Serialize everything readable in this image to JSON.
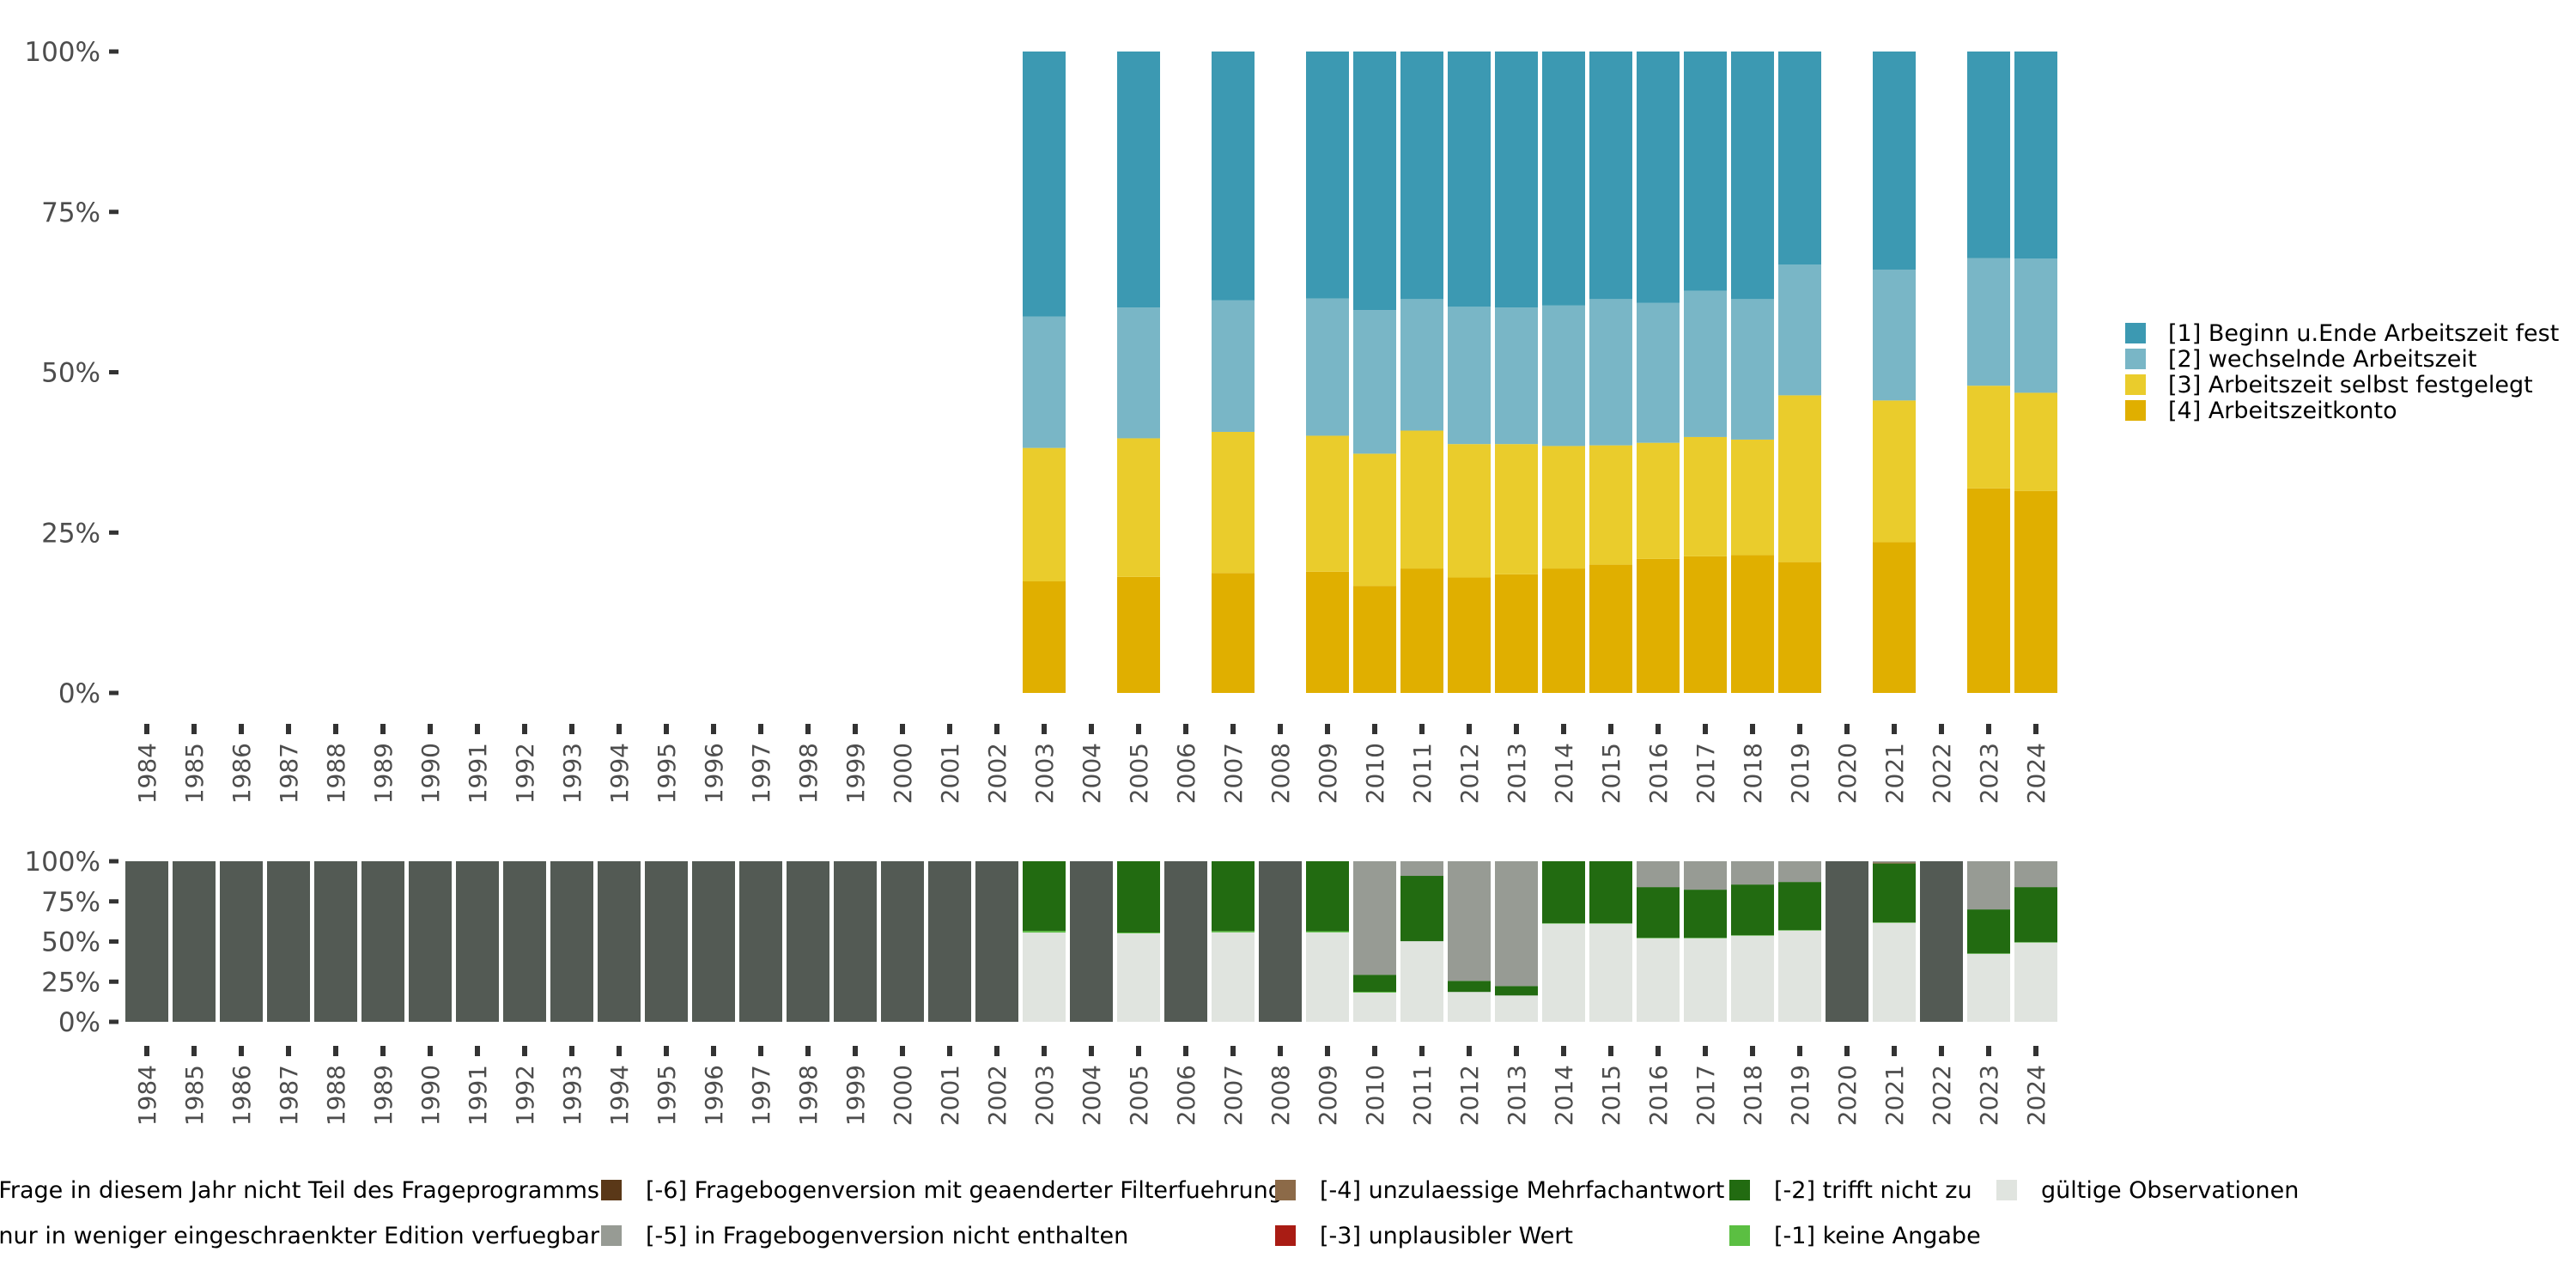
{
  "chart_data": [
    {
      "type": "bar",
      "stacked": true,
      "title": "",
      "xlabel": "",
      "ylabel": "",
      "ylim": [
        0,
        1
      ],
      "y_ticks": [
        "0%",
        "25%",
        "50%",
        "75%",
        "100%"
      ],
      "categories": [
        "1984",
        "1985",
        "1986",
        "1987",
        "1988",
        "1989",
        "1990",
        "1991",
        "1992",
        "1993",
        "1994",
        "1995",
        "1996",
        "1997",
        "1998",
        "1999",
        "2000",
        "2001",
        "2002",
        "2003",
        "2004",
        "2005",
        "2006",
        "2007",
        "2008",
        "2009",
        "2010",
        "2011",
        "2012",
        "2013",
        "2014",
        "2015",
        "2016",
        "2017",
        "2018",
        "2019",
        "2020",
        "2021",
        "2022",
        "2023",
        "2024"
      ],
      "legend_position": "right",
      "series": [
        {
          "name": "[4] Arbeitszeitkonto",
          "color": "#E0AF00",
          "values": {
            "2003": 0.174,
            "2005": 0.181,
            "2007": 0.187,
            "2009": 0.189,
            "2010": 0.167,
            "2011": 0.194,
            "2012": 0.18,
            "2013": 0.185,
            "2014": 0.194,
            "2015": 0.2,
            "2016": 0.209,
            "2017": 0.213,
            "2018": 0.215,
            "2019": 0.204,
            "2021": 0.235,
            "2023": 0.319,
            "2024": 0.315
          }
        },
        {
          "name": "[3] Arbeitszeit selbst festgelegt",
          "color": "#EACC2C",
          "values": {
            "2003": 0.208,
            "2005": 0.216,
            "2007": 0.22,
            "2009": 0.212,
            "2010": 0.206,
            "2011": 0.215,
            "2012": 0.208,
            "2013": 0.203,
            "2014": 0.191,
            "2015": 0.186,
            "2016": 0.181,
            "2017": 0.186,
            "2018": 0.18,
            "2019": 0.26,
            "2021": 0.221,
            "2023": 0.16,
            "2024": 0.153
          }
        },
        {
          "name": "[2] wechselnde Arbeitszeit",
          "color": "#79B6C6",
          "values": {
            "2003": 0.205,
            "2005": 0.204,
            "2007": 0.205,
            "2009": 0.214,
            "2010": 0.224,
            "2011": 0.205,
            "2012": 0.214,
            "2013": 0.213,
            "2014": 0.219,
            "2015": 0.228,
            "2016": 0.218,
            "2017": 0.228,
            "2018": 0.219,
            "2019": 0.204,
            "2021": 0.204,
            "2023": 0.199,
            "2024": 0.209
          }
        },
        {
          "name": "[1] Beginn u.Ende Arbeitszeit fest",
          "color": "#3C99B2",
          "values": {
            "2003": 0.413,
            "2005": 0.399,
            "2007": 0.388,
            "2009": 0.385,
            "2010": 0.403,
            "2011": 0.386,
            "2012": 0.398,
            "2013": 0.399,
            "2014": 0.396,
            "2015": 0.386,
            "2016": 0.392,
            "2017": 0.373,
            "2018": 0.386,
            "2019": 0.332,
            "2021": 0.34,
            "2023": 0.322,
            "2024": 0.323
          }
        }
      ]
    },
    {
      "type": "bar",
      "stacked": true,
      "title": "",
      "xlabel": "",
      "ylabel": "",
      "ylim": [
        0,
        1
      ],
      "y_ticks": [
        "0%",
        "25%",
        "50%",
        "75%",
        "100%"
      ],
      "categories": [
        "1984",
        "1985",
        "1986",
        "1987",
        "1988",
        "1989",
        "1990",
        "1991",
        "1992",
        "1993",
        "1994",
        "1995",
        "1996",
        "1997",
        "1998",
        "1999",
        "2000",
        "2001",
        "2002",
        "2003",
        "2004",
        "2005",
        "2006",
        "2007",
        "2008",
        "2009",
        "2010",
        "2011",
        "2012",
        "2013",
        "2014",
        "2015",
        "2016",
        "2017",
        "2018",
        "2019",
        "2020",
        "2021",
        "2022",
        "2023",
        "2024"
      ],
      "legend_position": "bottom",
      "series": [
        {
          "name": "gültige Observationen",
          "color": "#E0E4DF",
          "values": {
            "2003": 0.556,
            "2005": 0.551,
            "2007": 0.557,
            "2009": 0.557,
            "2010": 0.182,
            "2011": 0.502,
            "2012": 0.186,
            "2013": 0.164,
            "2014": 0.611,
            "2015": 0.611,
            "2016": 0.52,
            "2017": 0.52,
            "2018": 0.536,
            "2019": 0.568,
            "2021": 0.616,
            "2023": 0.423,
            "2024": 0.493
          }
        },
        {
          "name": "[-1] keine Angabe",
          "color": "#5BBF42",
          "values": {
            "2003": 0.01,
            "2005": 0.005,
            "2007": 0.008,
            "2009": 0.007,
            "2010": 0.005,
            "2014": 0.003,
            "2015": 0.003,
            "2016": 0.003,
            "2017": 0.003,
            "2018": 0.003,
            "2019": 0.003,
            "2021": 0.003,
            "2023": 0.003,
            "2024": 0.003
          }
        },
        {
          "name": "[-2] trifft nicht zu",
          "color": "#226B11",
          "values": {
            "2003": 0.434,
            "2005": 0.444,
            "2007": 0.435,
            "2009": 0.436,
            "2010": 0.106,
            "2011": 0.407,
            "2012": 0.069,
            "2013": 0.059,
            "2014": 0.386,
            "2015": 0.386,
            "2016": 0.316,
            "2017": 0.3,
            "2018": 0.316,
            "2019": 0.3,
            "2021": 0.367,
            "2023": 0.274,
            "2024": 0.343
          }
        },
        {
          "name": "[-3] unplausibler Wert",
          "color": "#A91C14",
          "values": {}
        },
        {
          "name": "[-4] unzulaessige Mehrfachantwort",
          "color": "#8C6A48",
          "values": {
            "2021": 0.006
          }
        },
        {
          "name": "[-5] in Fragebogenversion nicht enthalten",
          "color": "#979B94",
          "values": {
            "2010": 0.707,
            "2011": 0.091,
            "2012": 0.745,
            "2013": 0.777,
            "2016": 0.161,
            "2017": 0.177,
            "2018": 0.145,
            "2019": 0.129,
            "2021": 0.008,
            "2023": 0.3,
            "2024": 0.161
          }
        },
        {
          "name": "[-6] Fragebogenversion mit geaenderter Filterfuehrung",
          "color": "#5A3818",
          "values": {}
        },
        {
          "name": "nur in weniger eingeschraenkter Edition verfuegbar",
          "color": "#979B94",
          "values": {}
        },
        {
          "name": "Frage in diesem Jahr nicht Teil des Frageprogramms",
          "color": "#535A54",
          "values": {
            "1984": 1,
            "1985": 1,
            "1986": 1,
            "1987": 1,
            "1988": 1,
            "1989": 1,
            "1990": 1,
            "1991": 1,
            "1992": 1,
            "1993": 1,
            "1994": 1,
            "1995": 1,
            "1996": 1,
            "1997": 1,
            "1998": 1,
            "1999": 1,
            "2000": 1,
            "2001": 1,
            "2002": 1,
            "2004": 1,
            "2006": 1,
            "2008": 1,
            "2020": 1,
            "2022": 1
          }
        }
      ]
    }
  ],
  "top_legend": [
    {
      "label": "[1] Beginn u.Ende Arbeitszeit fest",
      "color": "#3C99B2"
    },
    {
      "label": "[2] wechselnde Arbeitszeit",
      "color": "#79B6C6"
    },
    {
      "label": "[3] Arbeitszeit selbst festgelegt",
      "color": "#EACC2C"
    },
    {
      "label": "[4] Arbeitszeitkonto",
      "color": "#E0AF00"
    }
  ],
  "bottom_legend": [
    {
      "label": "Frage in diesem Jahr nicht Teil des Frageprogramms",
      "color": "#535A54"
    },
    {
      "label": "nur in weniger eingeschraenkter Edition verfuegbar",
      "color": "#979B94"
    },
    {
      "label": "[-6] Fragebogenversion mit geaenderter Filterfuehrung",
      "color": "#5A3818"
    },
    {
      "label": "[-5] in Fragebogenversion nicht enthalten",
      "color": "#979B94"
    },
    {
      "label": "[-4] unzulaessige Mehrfachantwort",
      "color": "#8C6A48"
    },
    {
      "label": "[-3] unplausibler Wert",
      "color": "#A91C14"
    },
    {
      "label": "[-2] trifft nicht zu",
      "color": "#226B11"
    },
    {
      "label": "[-1] keine Angabe",
      "color": "#5BBF42"
    },
    {
      "label": "gültige Observationen",
      "color": "#E0E4DF"
    }
  ]
}
